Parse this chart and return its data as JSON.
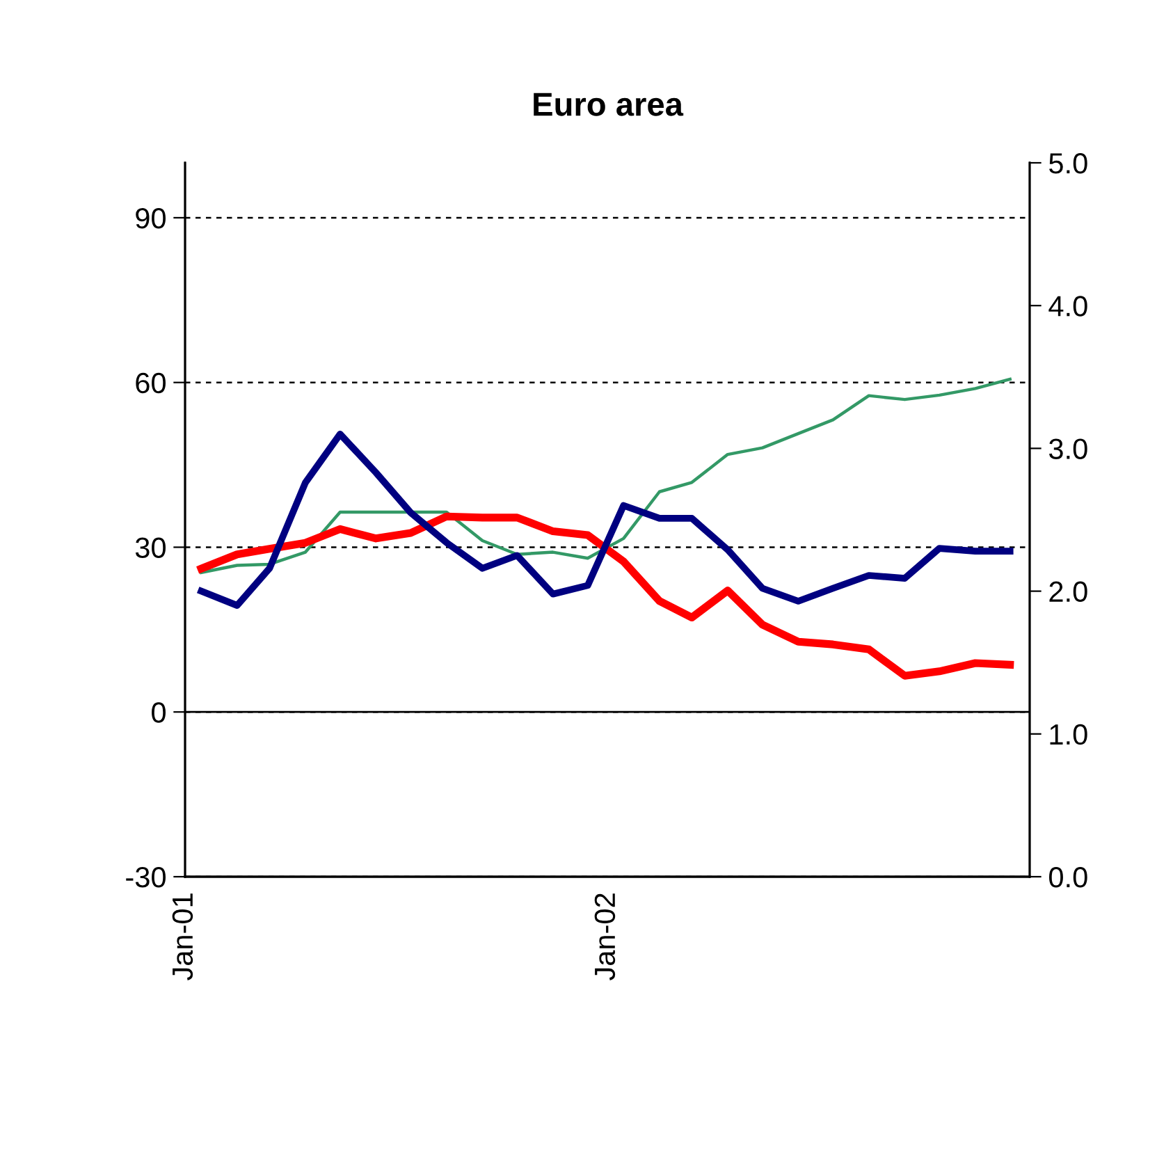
{
  "chart_data": {
    "type": "line",
    "title": "Euro area",
    "x": [
      "2001-01-15",
      "2001-02-15",
      "2001-03-15",
      "2001-04-15",
      "2001-05-15",
      "2001-06-15",
      "2001-07-15",
      "2001-08-15",
      "2001-09-15",
      "2001-10-15",
      "2001-11-15",
      "2001-12-15",
      "2002-01-15",
      "2002-02-15",
      "2002-03-15",
      "2002-04-15",
      "2002-05-15",
      "2002-06-15",
      "2002-07-15",
      "2002-08-15",
      "2002-09-15",
      "2002-10-15",
      "2002-11-15",
      "2002-12-15"
    ],
    "series": [
      {
        "color": "#339966",
        "values": [
          25.4,
          26.7,
          26.9,
          29.1,
          36.4,
          36.4,
          36.4,
          36.4,
          31.2,
          28.7,
          29.1,
          28.0,
          31.6,
          40.1,
          41.8,
          46.9,
          48.1,
          50.7,
          53.2,
          57.6,
          56.9,
          57.7,
          58.9,
          60.6
        ]
      },
      {
        "color": "#ff0000",
        "values": [
          26.1,
          28.7,
          29.7,
          30.8,
          33.3,
          31.6,
          32.6,
          35.6,
          35.4,
          35.4,
          32.9,
          32.2,
          27.4,
          20.2,
          17.2,
          22.1,
          15.9,
          12.8,
          12.3,
          11.4,
          6.6,
          7.4,
          8.9,
          8.6
        ]
      },
      {
        "color": "#000080",
        "axis": "y2",
        "values": [
          2.0,
          1.9,
          2.16,
          2.76,
          3.1,
          2.83,
          2.55,
          2.34,
          2.16,
          2.25,
          1.98,
          2.04,
          2.6,
          2.51,
          2.51,
          2.29,
          2.02,
          1.93,
          2.02,
          2.11,
          2.09,
          2.3,
          2.28,
          2.28
        ]
      }
    ],
    "xlim": [
      "2001-01",
      "2003-01"
    ],
    "xticks": [
      {
        "value": "2001-01",
        "label": "Jan-01"
      },
      {
        "value": "2002-01",
        "label": "Jan-02"
      }
    ],
    "ylim": [
      -30,
      100
    ],
    "yticks": [
      -30,
      0,
      30,
      60,
      90
    ],
    "y2lim": [
      0,
      5
    ],
    "y2ticks": [
      {
        "value": 0,
        "label": "0.0"
      },
      {
        "value": 1,
        "label": "1.0"
      },
      {
        "value": 2,
        "label": "2.0"
      },
      {
        "value": 3,
        "label": "3.0"
      },
      {
        "value": 4,
        "label": "4.0"
      },
      {
        "value": 5,
        "label": "5.0"
      }
    ],
    "ref_lines": [
      {
        "axis": "y",
        "value": 0,
        "color": "#000000",
        "line_style": "solid"
      }
    ],
    "grid": "y",
    "line_style": "solid",
    "marker": "none",
    "legend": false
  }
}
